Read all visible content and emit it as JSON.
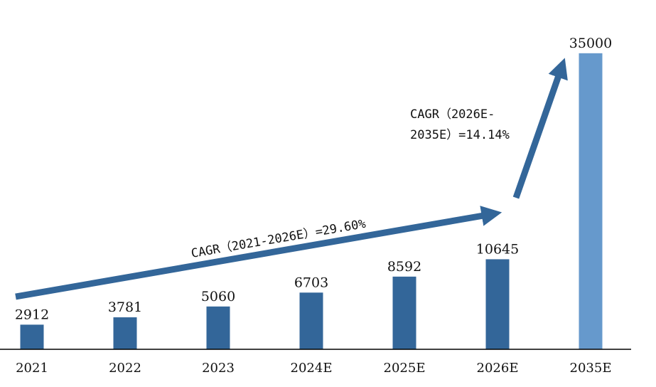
{
  "chart_data": {
    "type": "bar",
    "categories": [
      "2021",
      "2022",
      "2023",
      "2024E",
      "2025E",
      "2026E",
      "2035E"
    ],
    "values": [
      2912,
      3781,
      5060,
      6703,
      8592,
      10645,
      35000
    ],
    "value_labels": [
      "2912",
      "3781",
      "5060",
      "6703",
      "8592",
      "10645",
      "35000"
    ],
    "ylim": [
      0,
      36500
    ],
    "grid": false,
    "legend": "none",
    "colors": {
      "bar": "#336699",
      "bar_highlight": "#6699CC",
      "arrow": "#336699",
      "axis": "#000000"
    },
    "annotations": [
      {
        "id": "cagr1",
        "text": "CAGR（2021-2026E）=29.60%",
        "from": "2021",
        "to": "2026E"
      },
      {
        "id": "cagr2",
        "lines": [
          "CAGR（2026E-",
          "2035E）=14.14%"
        ],
        "from": "2026E",
        "to": "2035E"
      }
    ]
  }
}
